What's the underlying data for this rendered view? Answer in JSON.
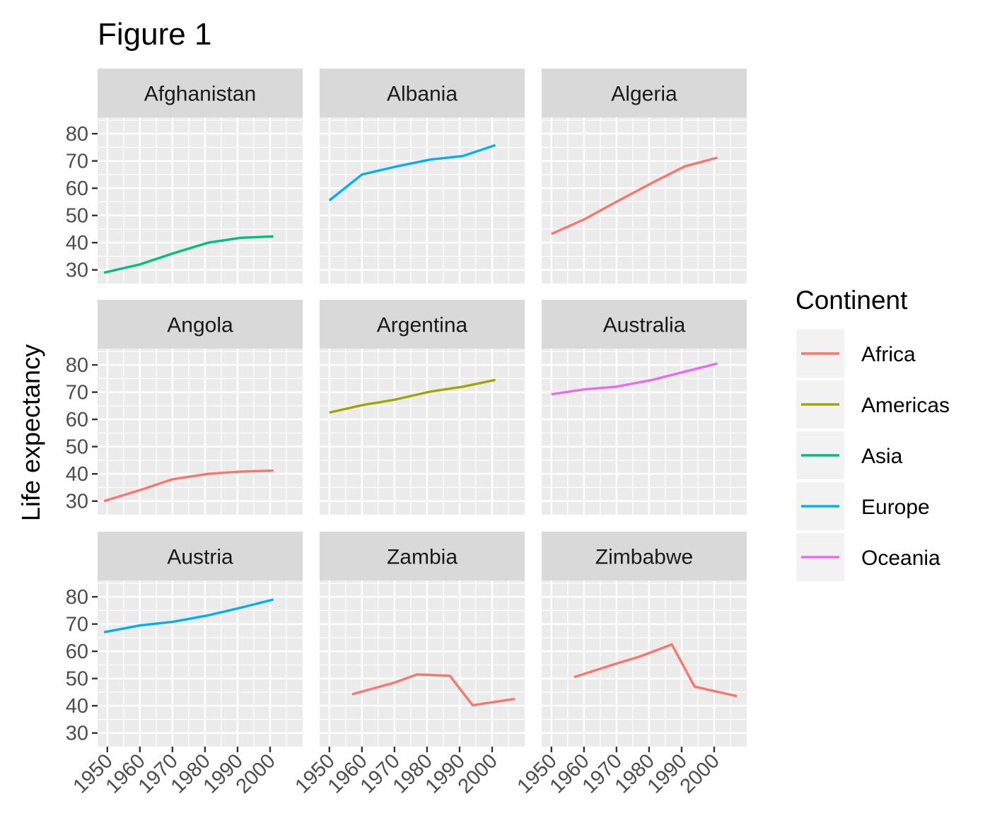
{
  "chart_data": {
    "type": "line",
    "title": "Figure 1",
    "xlabel": "",
    "ylabel": "Life expectancy",
    "xlim": [
      1947,
      2010
    ],
    "ylim": [
      25,
      86
    ],
    "x_ticks": [
      1950,
      1960,
      1970,
      1980,
      1990,
      2000
    ],
    "y_ticks": [
      30,
      40,
      50,
      60,
      70,
      80
    ],
    "grid": true,
    "legend": {
      "title": "Continent",
      "position": "right",
      "entries": [
        {
          "name": "Africa",
          "color": "#F8766D"
        },
        {
          "name": "Americas",
          "color": "#A3A500"
        },
        {
          "name": "Asia",
          "color": "#00BF7D"
        },
        {
          "name": "Europe",
          "color": "#00B0F6"
        },
        {
          "name": "Oceania",
          "color": "#E76BF3"
        }
      ]
    },
    "panels": [
      {
        "country": "Afghanistan",
        "continent": "Asia",
        "x": [
          1949,
          1960,
          1970,
          1981,
          1991,
          2001
        ],
        "y": [
          29,
          32,
          36,
          40,
          41.8,
          42.3
        ]
      },
      {
        "country": "Albania",
        "continent": "Europe",
        "x": [
          1950,
          1960,
          1970,
          1981,
          1991,
          2001
        ],
        "y": [
          55.5,
          65,
          67.8,
          70.5,
          71.8,
          75.8
        ]
      },
      {
        "country": "Algeria",
        "continent": "Africa",
        "x": [
          1950,
          1960,
          1970,
          1981,
          1991,
          2001
        ],
        "y": [
          43.2,
          48.5,
          55,
          62,
          68,
          71.2
        ]
      },
      {
        "country": "Angola",
        "continent": "Africa",
        "x": [
          1949,
          1960,
          1970,
          1981,
          1991,
          2001
        ],
        "y": [
          30,
          34,
          38,
          40,
          40.8,
          41.2
        ]
      },
      {
        "country": "Argentina",
        "continent": "Americas",
        "x": [
          1950,
          1960,
          1970,
          1981,
          1991,
          2001
        ],
        "y": [
          62.5,
          65.2,
          67.2,
          70.2,
          72,
          74.5
        ]
      },
      {
        "country": "Australia",
        "continent": "Oceania",
        "x": [
          1950,
          1960,
          1970,
          1981,
          1991,
          2001
        ],
        "y": [
          69.2,
          71,
          72,
          74.5,
          77.5,
          80.5
        ]
      },
      {
        "country": "Austria",
        "continent": "Europe",
        "x": [
          1949,
          1960,
          1970,
          1981,
          1991,
          2001
        ],
        "y": [
          67,
          69.5,
          70.8,
          73.2,
          76,
          79
        ]
      },
      {
        "country": "Zambia",
        "continent": "Africa",
        "x": [
          1957,
          1970,
          1977,
          1987,
          1994,
          2007
        ],
        "y": [
          44.2,
          48.5,
          51.5,
          51,
          40.2,
          42.5
        ]
      },
      {
        "country": "Zimbabwe",
        "continent": "Africa",
        "x": [
          1957,
          1970,
          1977,
          1987,
          1994,
          2007
        ],
        "y": [
          50.5,
          55.5,
          58,
          62.5,
          47,
          43.5
        ]
      }
    ]
  }
}
